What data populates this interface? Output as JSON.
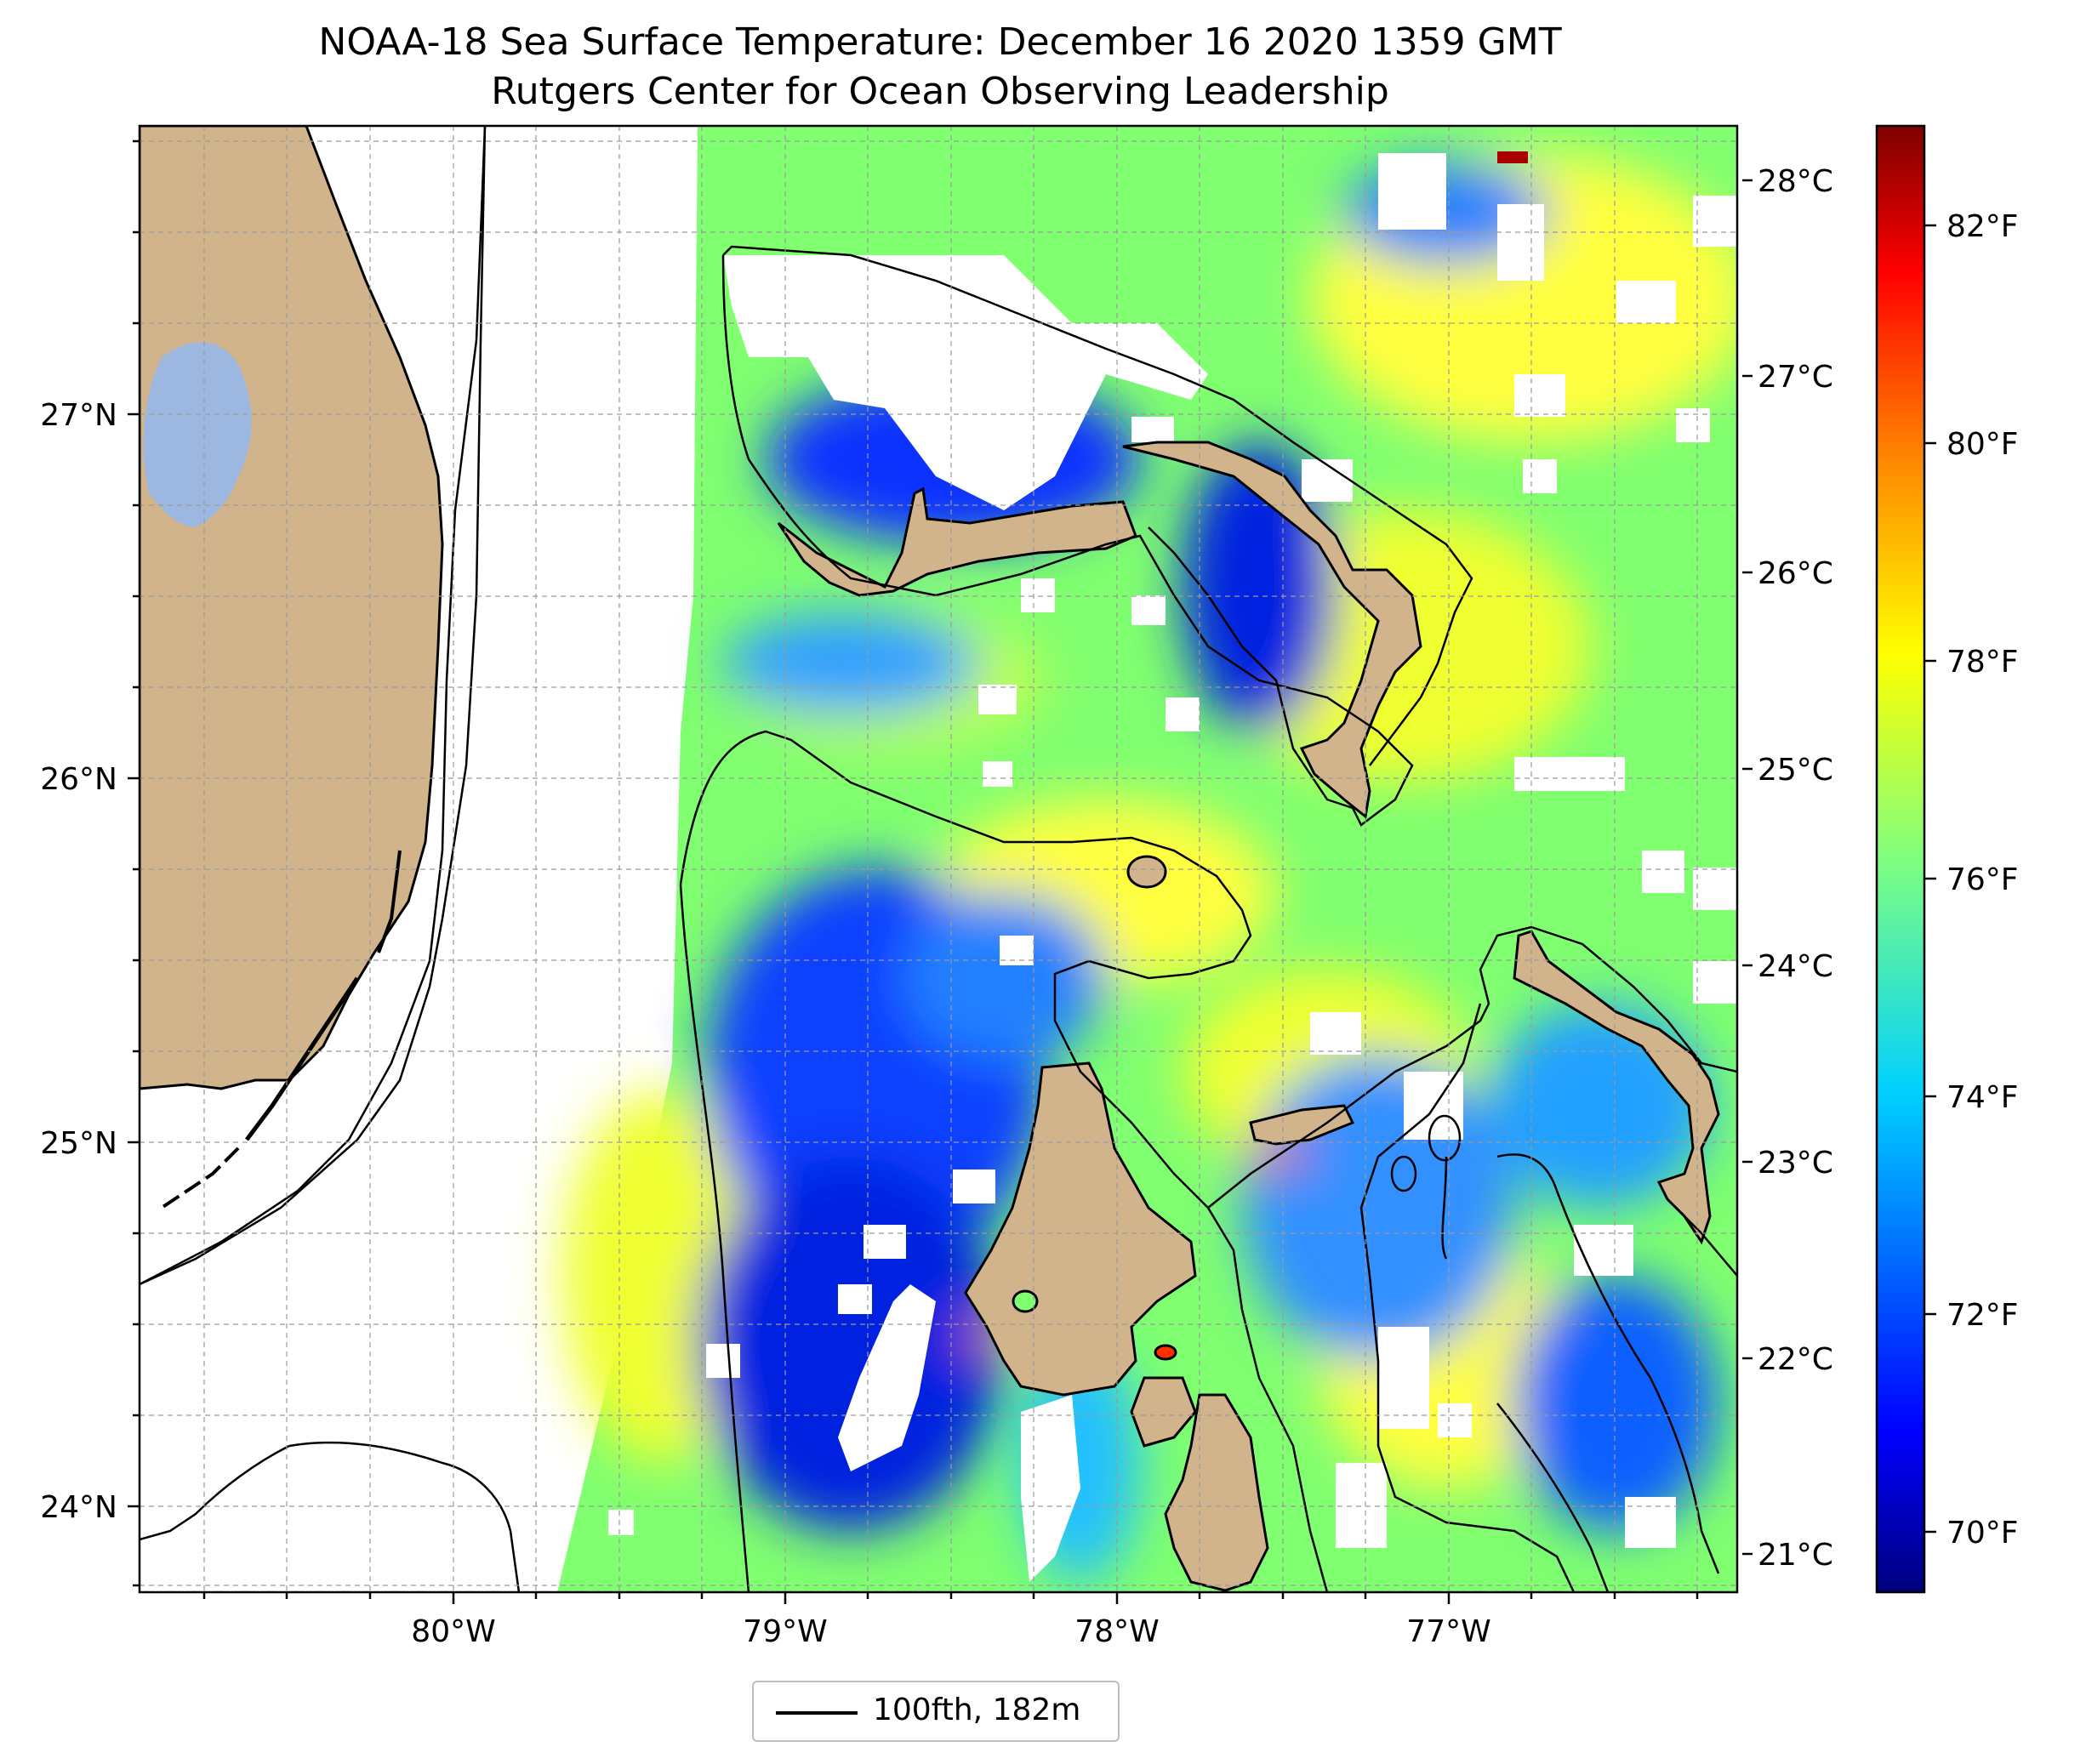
{
  "title": {
    "line1": "NOAA-18 Sea Surface Temperature: December 16 2020 1359 GMT",
    "line2": "Rutgers Center for Ocean Observing Leadership"
  },
  "map": {
    "lat_labels": [
      "27°N",
      "26°N",
      "25°N",
      "24°N"
    ],
    "lon_labels": [
      "80°W",
      "79°W",
      "78°W",
      "77°W"
    ],
    "gridlines": true,
    "colors": {
      "land": "#d2b48c",
      "lake": "#9db8e0",
      "no_data": "#ffffff",
      "contour": "#000000"
    }
  },
  "colorbar": {
    "celsius_ticks": [
      "28°C",
      "27°C",
      "26°C",
      "25°C",
      "24°C",
      "23°C",
      "22°C",
      "21°C"
    ],
    "fahrenheit_ticks": [
      "82°F",
      "80°F",
      "78°F",
      "76°F",
      "74°F",
      "72°F",
      "70°F"
    ],
    "colormap": "jet",
    "colors": [
      "#00007f",
      "#0000ff",
      "#007fff",
      "#00ffff",
      "#7fff7f",
      "#ffff00",
      "#ff7f00",
      "#ff0000",
      "#7f0000"
    ]
  },
  "legend": {
    "label": "100fth, 182m"
  }
}
